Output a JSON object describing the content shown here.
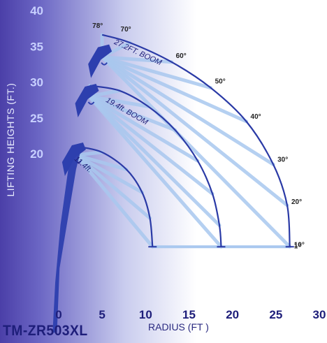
{
  "model": "TM-ZR503XL",
  "colors": {
    "boom_body": "#2d3fae",
    "arc": "#2a3aa6",
    "ray": "#a9c8ef",
    "text": "#1e1e7a",
    "tick": "#c8d0ff"
  },
  "chart_data": {
    "type": "diagram",
    "title": "",
    "xlabel": "RADIUS (FT )",
    "ylabel": "LIFTING HEIGHTS (FT.)",
    "xlim": [
      0,
      30
    ],
    "ylim": [
      0,
      40
    ],
    "x_ticks": [
      0,
      5,
      10,
      15,
      20,
      25,
      30
    ],
    "y_ticks": [
      20,
      25,
      30,
      35,
      40
    ],
    "booms": [
      {
        "label": "27.2FT. BOOM",
        "pivot": [
          5,
          33.5
        ],
        "envelope": [
          [
            5,
            36.6
          ],
          [
            8.2,
            35.5
          ],
          [
            13,
            32.8
          ],
          [
            17.5,
            29.2
          ],
          [
            21.6,
            24.5
          ],
          [
            24.7,
            18.5
          ],
          [
            26.3,
            12.8
          ],
          [
            26.6,
            7
          ]
        ],
        "angle_labels": [
          "78°",
          "70°",
          "60°",
          "50°",
          "40°",
          "30°",
          "20°",
          "10°",
          "1°"
        ]
      },
      {
        "label": "19.4ft. BOOM",
        "pivot": [
          3.5,
          28
        ],
        "envelope": [
          [
            3.6,
            29.5
          ],
          [
            7,
            28.8
          ],
          [
            10.3,
            26.6
          ],
          [
            13.4,
            23.3
          ],
          [
            16,
            19
          ],
          [
            17.7,
            14.4
          ],
          [
            18.5,
            10
          ],
          [
            18.7,
            7
          ]
        ]
      },
      {
        "label": "11.4ft.",
        "pivot": [
          2,
          19.8
        ],
        "envelope": [
          [
            2.2,
            21
          ],
          [
            5,
            20.2
          ],
          [
            7.8,
            17.8
          ],
          [
            9.6,
            14.6
          ],
          [
            10.5,
            11
          ],
          [
            10.8,
            7
          ]
        ]
      }
    ]
  }
}
